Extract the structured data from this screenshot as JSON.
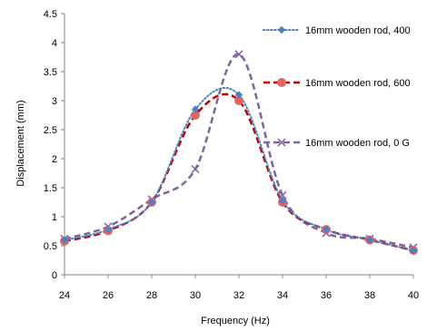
{
  "chart_data": {
    "type": "line",
    "title": "",
    "xlabel": "Frequency (Hz)",
    "ylabel": "Displacement (mm)",
    "xlim": [
      24,
      40
    ],
    "ylim": [
      0,
      4.5
    ],
    "x_ticks": [
      "24",
      "26",
      "28",
      "30",
      "32",
      "34",
      "36",
      "38",
      "40"
    ],
    "y_ticks": [
      "0",
      "0.5",
      "1",
      "1.5",
      "2",
      "2.5",
      "3",
      "3.5",
      "4",
      "4.5"
    ],
    "grid": false,
    "legend_position": "right",
    "series": [
      {
        "name": "16mm wooden rod,  400",
        "color": "#4f81bd",
        "line_style": "dotted",
        "marker": "diamond",
        "x": [
          24,
          26,
          28,
          30,
          32,
          34,
          36,
          38,
          40
        ],
        "y": [
          0.6,
          0.78,
          1.25,
          2.85,
          3.1,
          1.28,
          0.78,
          0.6,
          0.42
        ]
      },
      {
        "name": "16mm wooden rod,  600",
        "color": "#c00000",
        "marker_color": "#e06666",
        "line_style": "dashed",
        "marker": "circle",
        "x": [
          24,
          26,
          28,
          30,
          32,
          34,
          36,
          38,
          40
        ],
        "y": [
          0.58,
          0.76,
          1.25,
          2.75,
          3.0,
          1.25,
          0.78,
          0.6,
          0.42
        ]
      },
      {
        "name": "16mm wooden rod, 0 G",
        "color": "#8064a2",
        "line_style": "dashed",
        "marker": "x",
        "x": [
          24,
          26,
          28,
          30,
          32,
          34,
          36,
          38,
          40
        ],
        "y": [
          0.62,
          0.83,
          1.3,
          1.82,
          3.8,
          1.37,
          0.72,
          0.62,
          0.47
        ]
      }
    ]
  }
}
